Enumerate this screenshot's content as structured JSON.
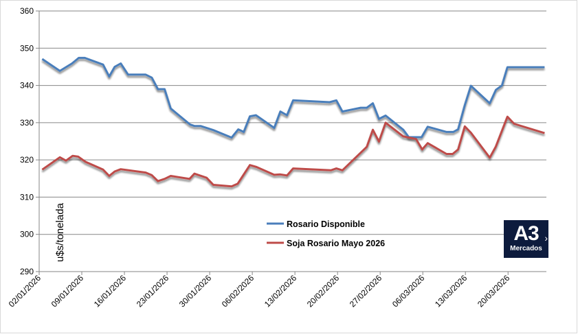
{
  "chart_data": {
    "type": "line",
    "title": "",
    "xlabel": "",
    "ylabel": "u$s/tonelada",
    "x_unit": "days since 02/01/2026",
    "xlim": [
      0,
      83
    ],
    "ylim": [
      290,
      360
    ],
    "yticks": [
      290,
      300,
      310,
      320,
      330,
      340,
      350,
      360
    ],
    "xticks": [
      {
        "day": 0,
        "label": "02/01/2026"
      },
      {
        "day": 7,
        "label": "09/01/2026"
      },
      {
        "day": 14,
        "label": "16/01/2026"
      },
      {
        "day": 21,
        "label": "23/01/2026"
      },
      {
        "day": 28,
        "label": "30/01/2026"
      },
      {
        "day": 35,
        "label": "06/02/2026"
      },
      {
        "day": 42,
        "label": "13/02/2026"
      },
      {
        "day": 49,
        "label": "20/02/2026"
      },
      {
        "day": 56,
        "label": "27/02/2026"
      },
      {
        "day": 63,
        "label": "06/03/2026"
      },
      {
        "day": 70,
        "label": "13/03/2026"
      },
      {
        "day": 77,
        "label": "20/03/2026"
      }
    ],
    "grid": true,
    "legend_position": "bottom-center",
    "series": [
      {
        "name": "Rosario Disponible",
        "color": "#4a7ebb",
        "points": [
          [
            0.5,
            347.1
          ],
          [
            3.4,
            343.9
          ],
          [
            5.4,
            345.9
          ],
          [
            6.5,
            347.4
          ],
          [
            7.5,
            347.4
          ],
          [
            10.5,
            345.6
          ],
          [
            11.5,
            342.4
          ],
          [
            12.4,
            345
          ],
          [
            13.4,
            345.9
          ],
          [
            14.6,
            342.9
          ],
          [
            17.5,
            342.9
          ],
          [
            18.5,
            342.1
          ],
          [
            19.5,
            339
          ],
          [
            20.6,
            339
          ],
          [
            21.6,
            333.8
          ],
          [
            24.8,
            329.5
          ],
          [
            25.5,
            329.1
          ],
          [
            26.5,
            329.1
          ],
          [
            28.6,
            328
          ],
          [
            31.6,
            326
          ],
          [
            32.7,
            328.2
          ],
          [
            33.6,
            327.5
          ],
          [
            34.6,
            331.7
          ],
          [
            35.6,
            332
          ],
          [
            38.6,
            328.6
          ],
          [
            39.6,
            333
          ],
          [
            40.7,
            332
          ],
          [
            41.7,
            336
          ],
          [
            47.7,
            335.5
          ],
          [
            48.8,
            336
          ],
          [
            49.8,
            333
          ],
          [
            52.8,
            334
          ],
          [
            53.8,
            334
          ],
          [
            54.8,
            335.2
          ],
          [
            55.8,
            331
          ],
          [
            56.9,
            331.9
          ],
          [
            59.8,
            328.1
          ],
          [
            60.7,
            326.1
          ],
          [
            62.8,
            326.1
          ],
          [
            63.8,
            328.9
          ],
          [
            66.9,
            327.5
          ],
          [
            68,
            327.5
          ],
          [
            68.8,
            328.2
          ],
          [
            69.9,
            334.7
          ],
          [
            70.9,
            339.9
          ],
          [
            74,
            335.2
          ],
          [
            75,
            338.8
          ],
          [
            76,
            340
          ],
          [
            76.9,
            344.9
          ],
          [
            83,
            344.9
          ]
        ]
      },
      {
        "name": "Soja Rosario Mayo 2026",
        "color": "#be4b48",
        "points": [
          [
            0.5,
            317.4
          ],
          [
            3.4,
            320.7
          ],
          [
            4.4,
            319.8
          ],
          [
            5.5,
            321.1
          ],
          [
            6.4,
            320.9
          ],
          [
            7.6,
            319.5
          ],
          [
            10.5,
            317.4
          ],
          [
            11.5,
            315.7
          ],
          [
            12.4,
            316.9
          ],
          [
            13.4,
            317.5
          ],
          [
            17.5,
            316.6
          ],
          [
            18.5,
            315.9
          ],
          [
            19.5,
            314.3
          ],
          [
            20.6,
            314.9
          ],
          [
            21.6,
            315.7
          ],
          [
            24.7,
            314.9
          ],
          [
            25.5,
            316.3
          ],
          [
            27.5,
            315.2
          ],
          [
            28.6,
            313.3
          ],
          [
            31.6,
            312.9
          ],
          [
            32.6,
            313.6
          ],
          [
            34.6,
            318.6
          ],
          [
            35.7,
            318.1
          ],
          [
            38.6,
            316
          ],
          [
            39.6,
            316.1
          ],
          [
            40.7,
            315.8
          ],
          [
            41.7,
            317.7
          ],
          [
            47.9,
            317.2
          ],
          [
            48.8,
            317.7
          ],
          [
            49.8,
            317.2
          ],
          [
            53.8,
            323.5
          ],
          [
            54.8,
            328.1
          ],
          [
            55.8,
            324.9
          ],
          [
            56.9,
            330
          ],
          [
            59.8,
            326.3
          ],
          [
            61.9,
            325.6
          ],
          [
            62.9,
            322.8
          ],
          [
            63.8,
            324.5
          ],
          [
            66.9,
            321.6
          ],
          [
            67.9,
            321.6
          ],
          [
            68.8,
            322.8
          ],
          [
            69.9,
            329
          ],
          [
            70.9,
            327.3
          ],
          [
            74,
            320.6
          ],
          [
            75,
            323.6
          ],
          [
            76.9,
            331.6
          ],
          [
            78,
            329.7
          ],
          [
            83,
            327.2
          ]
        ]
      }
    ]
  },
  "logo": {
    "big": "A3",
    "small": "Mercados",
    "arrow": "›"
  }
}
